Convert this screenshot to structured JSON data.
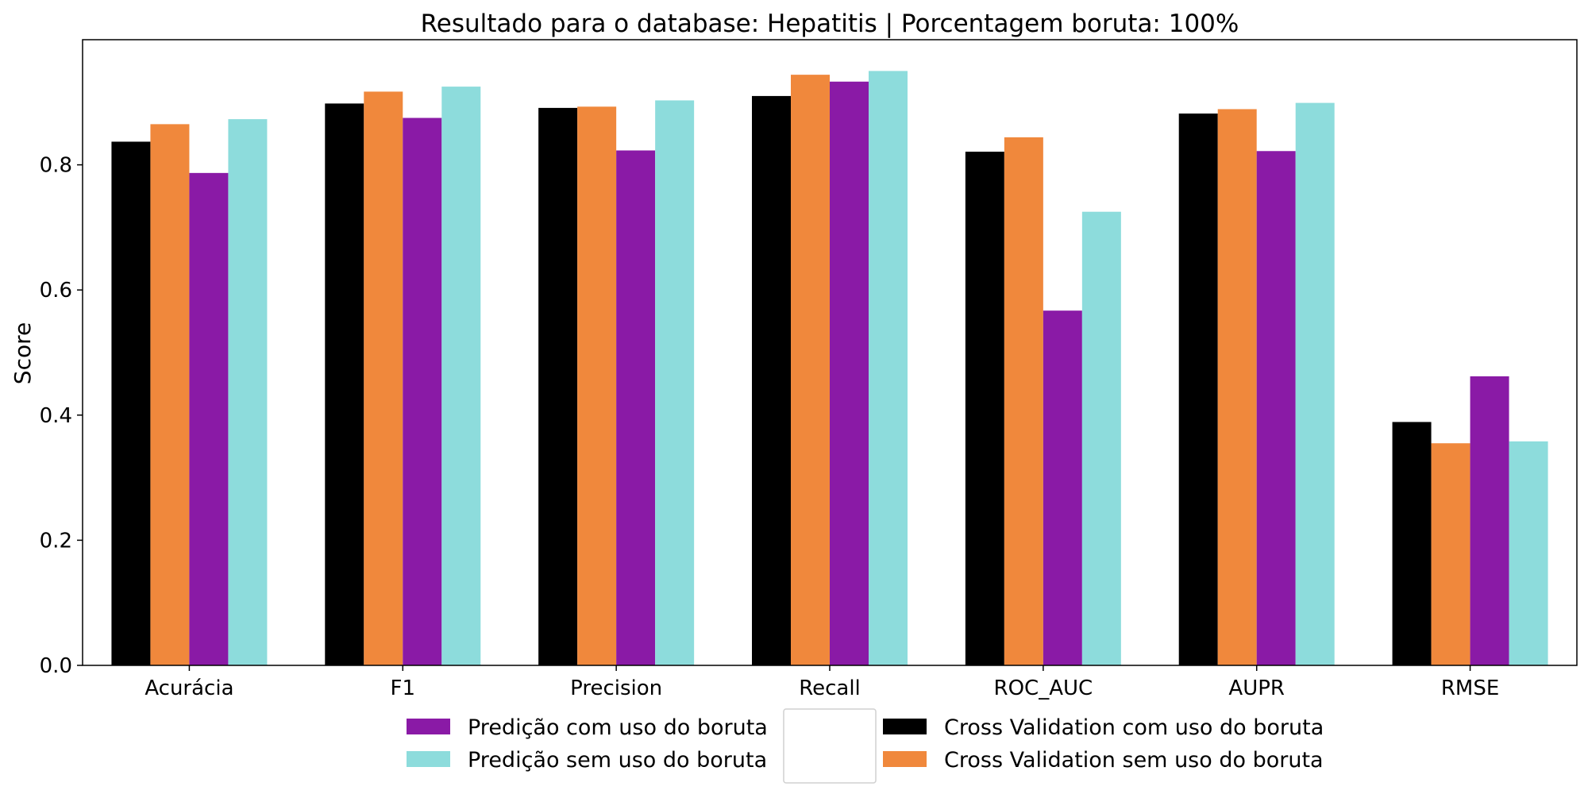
{
  "chart_data": {
    "type": "bar",
    "title": "Resultado para o database: Hepatitis | Porcentagem boruta: 100%",
    "xlabel": "",
    "ylabel": "Score",
    "ylim": [
      0,
      1.0
    ],
    "yticks": [
      "0.0",
      "0.2",
      "0.4",
      "0.6",
      "0.8"
    ],
    "categories": [
      "Acurácia",
      "F1",
      "Precision",
      "Recall",
      "ROC_AUC",
      "AUPR",
      "RMSE"
    ],
    "series": [
      {
        "name": "Cross Validation com uso do boruta",
        "color": "#000000",
        "values": [
          0.837,
          0.898,
          0.891,
          0.91,
          0.821,
          0.882,
          0.389
        ]
      },
      {
        "name": "Cross Validation sem uso do boruta",
        "color": "#f0883c",
        "values": [
          0.865,
          0.917,
          0.893,
          0.944,
          0.844,
          0.889,
          0.355
        ]
      },
      {
        "name": "Predição com uso do boruta",
        "color": "#8a1aa6",
        "values": [
          0.787,
          0.875,
          0.823,
          0.933,
          0.567,
          0.822,
          0.462
        ]
      },
      {
        "name": "Predição sem uso do boruta",
        "color": "#8ddcdc",
        "values": [
          0.873,
          0.925,
          0.903,
          0.95,
          0.725,
          0.899,
          0.358
        ]
      }
    ],
    "legend": {
      "left_column": [
        "Predição com uso do boruta",
        "Predição sem uso do boruta"
      ],
      "right_column": [
        "Cross Validation com uso do boruta",
        "Cross Validation sem uso do boruta"
      ]
    }
  }
}
